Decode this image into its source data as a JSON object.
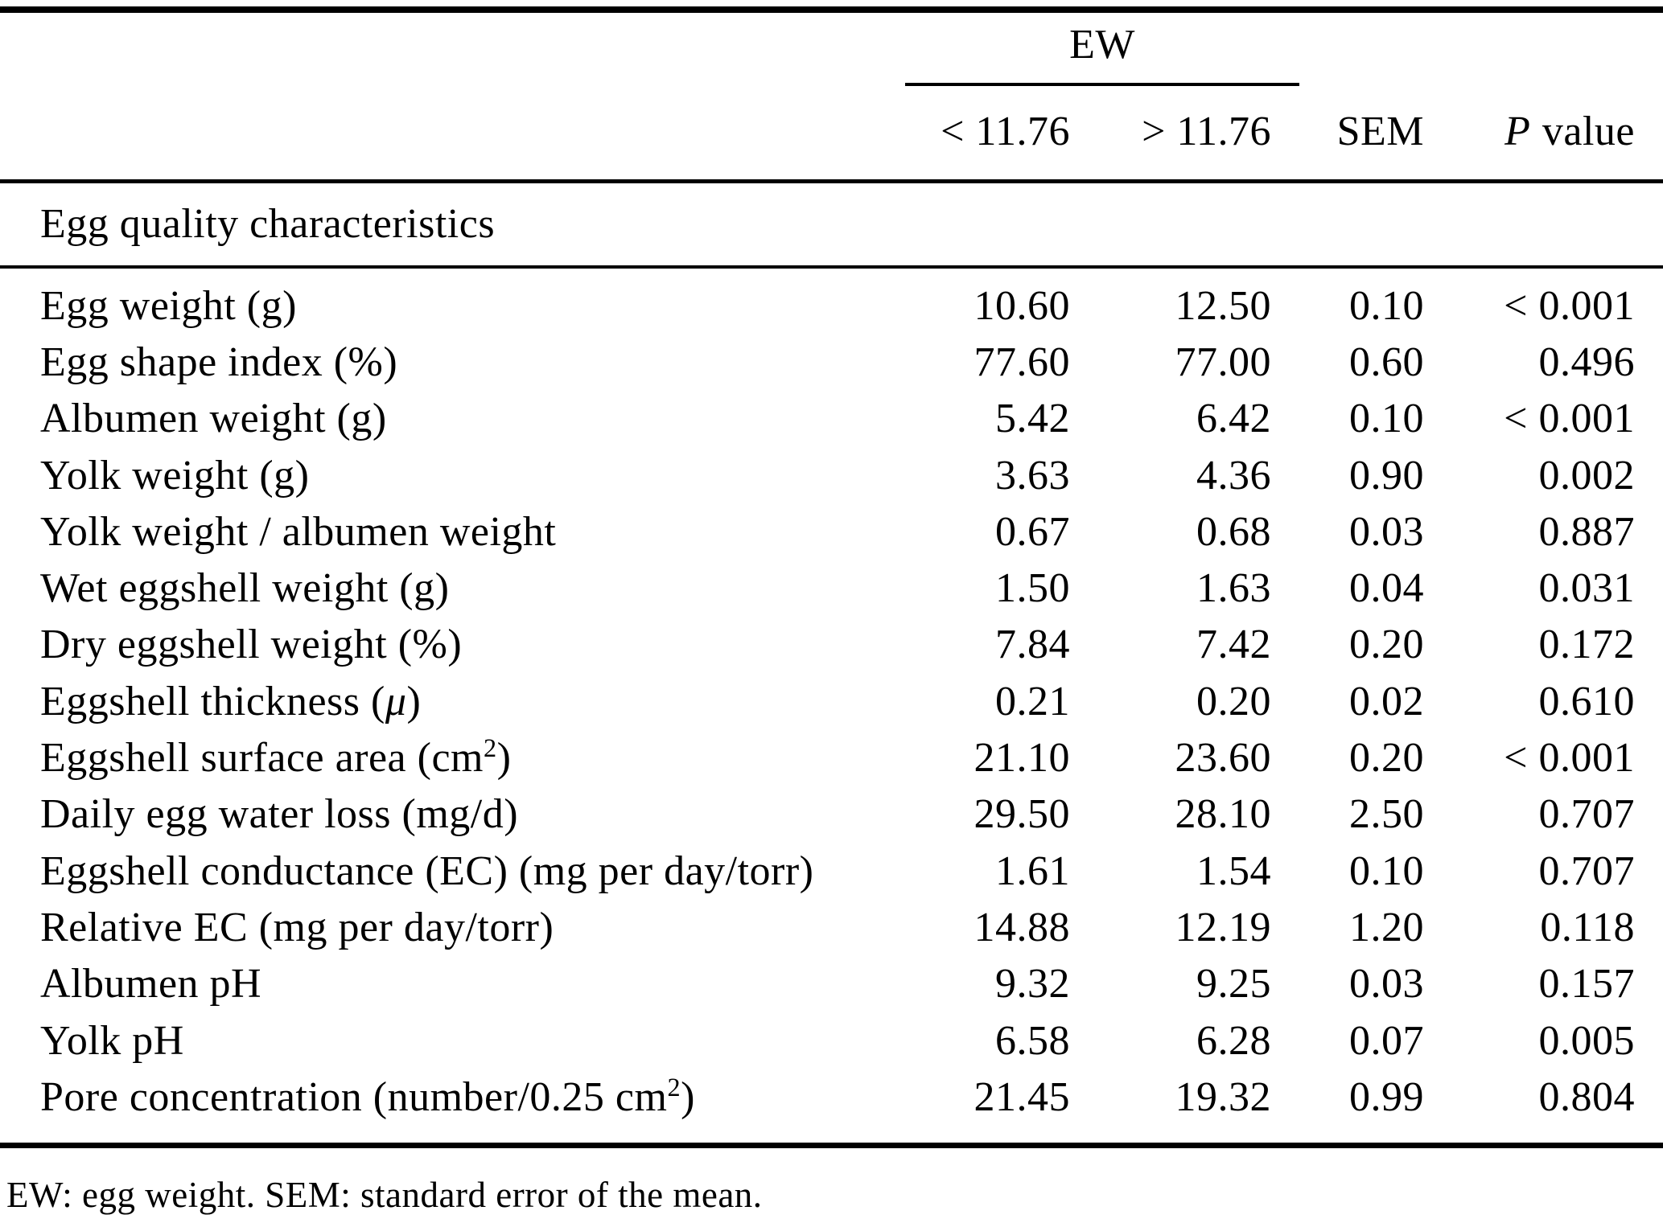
{
  "table": {
    "group_header": {
      "label": "EW"
    },
    "columns": {
      "c1": "< 11.76",
      "c2": "> 11.76",
      "c3": "SEM",
      "c4_italic": "P",
      "c4_rest": "value"
    },
    "section_header": "Egg quality characteristics",
    "rows": [
      {
        "label": [
          {
            "t": "Egg weight (g)"
          }
        ],
        "values": [
          "10.60",
          "12.50",
          "0.10",
          "< 0.001"
        ]
      },
      {
        "label": [
          {
            "t": "Egg shape index (%)"
          }
        ],
        "values": [
          "77.60",
          "77.00",
          "0.60",
          "0.496"
        ]
      },
      {
        "label": [
          {
            "t": "Albumen weight (g)"
          }
        ],
        "values": [
          "5.42",
          "6.42",
          "0.10",
          "< 0.001"
        ]
      },
      {
        "label": [
          {
            "t": "Yolk weight (g)"
          }
        ],
        "values": [
          "3.63",
          "4.36",
          "0.90",
          "0.002"
        ]
      },
      {
        "label": [
          {
            "t": "Yolk weight / albumen weight"
          }
        ],
        "values": [
          "0.67",
          "0.68",
          "0.03",
          "0.887"
        ]
      },
      {
        "label": [
          {
            "t": "Wet eggshell weight (g)"
          }
        ],
        "values": [
          "1.50",
          "1.63",
          "0.04",
          "0.031"
        ]
      },
      {
        "label": [
          {
            "t": "Dry eggshell weight (%)"
          }
        ],
        "values": [
          "7.84",
          "7.42",
          "0.20",
          "0.172"
        ]
      },
      {
        "label": [
          {
            "t": "Eggshell thickness ("
          },
          {
            "t": "μ",
            "italic": true
          },
          {
            "t": ")"
          }
        ],
        "values": [
          "0.21",
          "0.20",
          "0.02",
          "0.610"
        ]
      },
      {
        "label": [
          {
            "t": "Eggshell surface area (cm"
          },
          {
            "t": "2",
            "sup": true
          },
          {
            "t": ")"
          }
        ],
        "values": [
          "21.10",
          "23.60",
          "0.20",
          "< 0.001"
        ]
      },
      {
        "label": [
          {
            "t": "Daily egg water loss (mg/d)"
          }
        ],
        "values": [
          "29.50",
          "28.10",
          "2.50",
          "0.707"
        ]
      },
      {
        "label": [
          {
            "t": "Eggshell conductance (EC) (mg per day/torr)"
          }
        ],
        "values": [
          "1.61",
          "1.54",
          "0.10",
          "0.707"
        ]
      },
      {
        "label": [
          {
            "t": "Relative EC (mg per day/torr)"
          }
        ],
        "values": [
          "14.88",
          "12.19",
          "1.20",
          "0.118"
        ]
      },
      {
        "label": [
          {
            "t": "Albumen pH"
          }
        ],
        "values": [
          "9.32",
          "9.25",
          "0.03",
          "0.157"
        ]
      },
      {
        "label": [
          {
            "t": "Yolk pH"
          }
        ],
        "values": [
          "6.58",
          "6.28",
          "0.07",
          "0.005"
        ]
      },
      {
        "label": [
          {
            "t": "Pore concentration (number/0.25 cm"
          },
          {
            "t": "2",
            "sup": true
          },
          {
            "t": ")"
          }
        ],
        "values": [
          "21.45",
          "19.32",
          "0.99",
          "0.804"
        ]
      }
    ],
    "footnote": "EW: egg weight. SEM: standard error of the mean."
  }
}
